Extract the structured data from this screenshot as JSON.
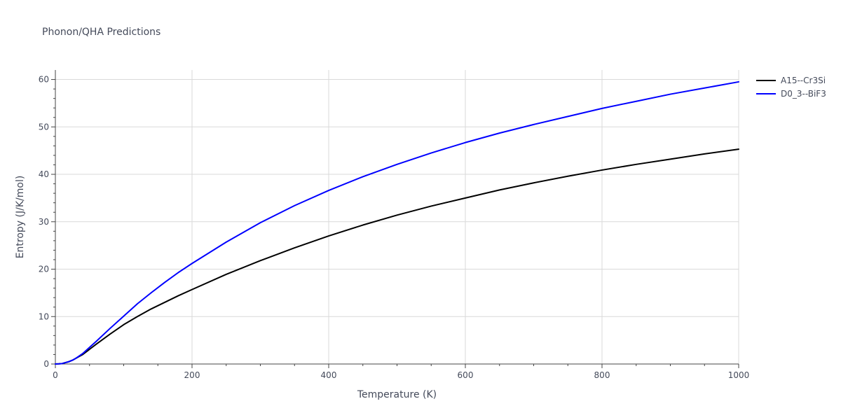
{
  "chart_data": {
    "type": "line",
    "title": "Phonon/QHA Predictions",
    "xlabel": "Temperature (K)",
    "ylabel": "Entropy (J/K/mol)",
    "xlim": [
      0,
      1000
    ],
    "ylim": [
      0,
      62
    ],
    "x_ticks": [
      0,
      200,
      400,
      600,
      800,
      1000
    ],
    "x_tick_labels": [
      "0",
      "200",
      "400",
      "600",
      "800",
      "1000"
    ],
    "y_ticks": [
      0,
      10,
      20,
      30,
      40,
      50,
      60
    ],
    "y_tick_labels": [
      "0",
      "10",
      "20",
      "30",
      "40",
      "50",
      "60"
    ],
    "grid": true,
    "legend_position": "top-right",
    "series": [
      {
        "name": "A15--Cr3Si",
        "color": "#000000",
        "x": [
          0,
          5,
          10,
          15,
          20,
          25,
          30,
          40,
          50,
          60,
          80,
          100,
          120,
          140,
          160,
          180,
          200,
          250,
          300,
          350,
          400,
          450,
          500,
          550,
          600,
          650,
          700,
          750,
          800,
          850,
          900,
          950,
          1000
        ],
        "y": [
          0,
          0.03,
          0.1,
          0.3,
          0.5,
          0.8,
          1.2,
          2.0,
          3.1,
          4.2,
          6.3,
          8.3,
          10.0,
          11.6,
          13.0,
          14.4,
          15.7,
          18.9,
          21.8,
          24.5,
          27.0,
          29.3,
          31.4,
          33.3,
          35.0,
          36.7,
          38.2,
          39.6,
          40.9,
          42.1,
          43.2,
          44.3,
          45.3
        ]
      },
      {
        "name": "D0_3--BiF3",
        "color": "#0000ff",
        "x": [
          0,
          5,
          10,
          15,
          20,
          25,
          30,
          40,
          50,
          60,
          80,
          100,
          120,
          140,
          160,
          180,
          200,
          250,
          300,
          350,
          400,
          450,
          500,
          550,
          600,
          650,
          700,
          750,
          800,
          850,
          900,
          950,
          1000
        ],
        "y": [
          0,
          0.03,
          0.1,
          0.3,
          0.5,
          0.8,
          1.2,
          2.2,
          3.5,
          4.8,
          7.5,
          10.1,
          12.7,
          15.0,
          17.2,
          19.3,
          21.2,
          25.7,
          29.8,
          33.4,
          36.6,
          39.5,
          42.1,
          44.5,
          46.7,
          48.7,
          50.5,
          52.2,
          53.9,
          55.4,
          56.9,
          58.2,
          59.5
        ]
      }
    ]
  }
}
